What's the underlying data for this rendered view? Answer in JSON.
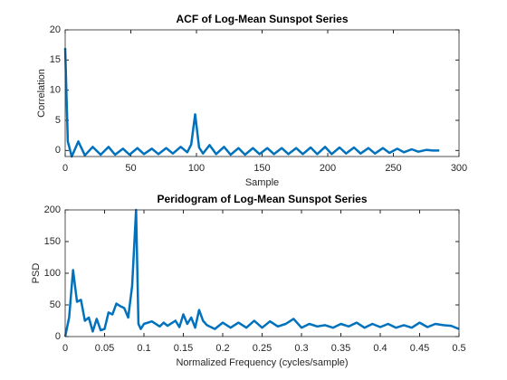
{
  "chart_data": [
    {
      "type": "line",
      "title": "ACF of Log-Mean Sunspot Series",
      "x_label": "Sample",
      "y_label": "Correlation",
      "xlim": [
        0,
        300
      ],
      "xticks": [
        0,
        50,
        100,
        150,
        200,
        250,
        300
      ],
      "ylim": [
        -1,
        20
      ],
      "yticks": [
        0,
        5,
        10,
        15,
        20
      ],
      "series": [
        {
          "color": "#0072bd",
          "x": [
            0,
            2,
            5,
            10,
            15,
            21,
            27,
            33,
            38,
            44,
            49,
            55,
            60,
            66,
            71,
            77,
            82,
            88,
            93,
            96,
            99,
            102,
            105,
            110,
            115,
            121,
            126,
            132,
            137,
            143,
            148,
            154,
            159,
            165,
            170,
            176,
            181,
            187,
            192,
            198,
            203,
            209,
            214,
            220,
            225,
            231,
            236,
            242,
            247,
            253,
            258,
            264,
            269,
            275,
            280,
            285
          ],
          "values": [
            17,
            1.5,
            -1,
            1.5,
            -0.8,
            0.6,
            -0.7,
            0.6,
            -0.7,
            0.3,
            -0.7,
            0.4,
            -0.6,
            0.3,
            -0.6,
            0.4,
            -0.5,
            0.6,
            -0.3,
            1,
            6,
            0.5,
            -0.5,
            0.9,
            -0.6,
            0.6,
            -0.7,
            0.4,
            -0.7,
            0.4,
            -0.6,
            0.4,
            -0.6,
            0.4,
            -0.6,
            0.4,
            -0.6,
            0.5,
            -0.6,
            0.6,
            -0.6,
            0.5,
            -0.5,
            0.5,
            -0.5,
            0.4,
            -0.5,
            0.4,
            -0.4,
            0.3,
            -0.3,
            0.2,
            -0.2,
            0.1,
            0,
            0
          ]
        }
      ]
    },
    {
      "type": "line",
      "title": "Peridogram of Log-Mean Sunspot Series",
      "x_label": "Normalized Frequency (cycles/sample)",
      "y_label": "PSD",
      "xlim": [
        0,
        0.5
      ],
      "xticks": [
        0,
        0.05,
        0.1,
        0.15,
        0.2,
        0.25,
        0.3,
        0.35,
        0.4,
        0.45,
        0.5
      ],
      "ylim": [
        0,
        200
      ],
      "yticks": [
        0,
        50,
        100,
        150,
        200
      ],
      "series": [
        {
          "color": "#0072bd",
          "x": [
            0,
            0.005,
            0.01,
            0.015,
            0.02,
            0.025,
            0.03,
            0.035,
            0.04,
            0.045,
            0.05,
            0.055,
            0.06,
            0.065,
            0.07,
            0.075,
            0.08,
            0.085,
            0.09,
            0.093,
            0.096,
            0.1,
            0.11,
            0.12,
            0.125,
            0.13,
            0.14,
            0.145,
            0.15,
            0.155,
            0.16,
            0.165,
            0.17,
            0.175,
            0.18,
            0.19,
            0.2,
            0.21,
            0.22,
            0.23,
            0.24,
            0.25,
            0.26,
            0.27,
            0.28,
            0.29,
            0.3,
            0.31,
            0.32,
            0.33,
            0.34,
            0.35,
            0.36,
            0.37,
            0.38,
            0.39,
            0.4,
            0.41,
            0.42,
            0.43,
            0.44,
            0.45,
            0.46,
            0.47,
            0.48,
            0.49,
            0.5
          ],
          "values": [
            0,
            30,
            105,
            55,
            58,
            25,
            30,
            8,
            28,
            10,
            12,
            38,
            35,
            52,
            48,
            45,
            30,
            80,
            200,
            20,
            12,
            20,
            24,
            16,
            22,
            17,
            25,
            15,
            35,
            20,
            30,
            14,
            42,
            25,
            18,
            12,
            22,
            14,
            22,
            14,
            25,
            14,
            24,
            16,
            20,
            28,
            14,
            20,
            16,
            18,
            14,
            20,
            16,
            22,
            14,
            20,
            15,
            20,
            14,
            18,
            14,
            22,
            15,
            20,
            18,
            17,
            12
          ]
        }
      ]
    }
  ]
}
